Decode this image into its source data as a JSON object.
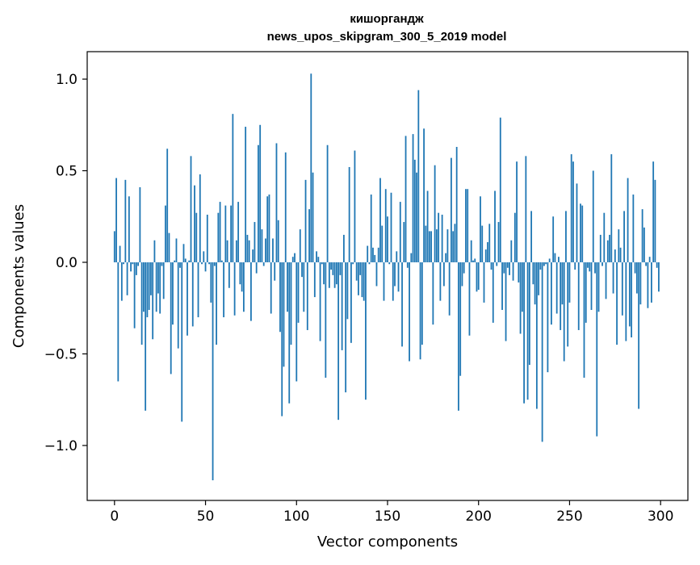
{
  "chart_data": {
    "type": "bar",
    "title": "кишоргандж",
    "subtitle": "news_upos_skipgram_300_5_2019 model",
    "xlabel": "Vector components",
    "ylabel": "Components values",
    "xlim": [
      -15,
      315
    ],
    "ylim": [
      -1.3,
      1.15
    ],
    "xticks": [
      0,
      50,
      100,
      150,
      200,
      250,
      300
    ],
    "yticks": [
      -1.0,
      -0.5,
      0.0,
      0.5,
      1.0
    ],
    "ytick_labels": [
      "−1.0",
      "−0.5",
      "0.0",
      "0.5",
      "1.0"
    ],
    "grid": false,
    "bar_color": "#1f77b4",
    "values": [
      0.17,
      0.46,
      -0.65,
      0.09,
      -0.21,
      -0.01,
      0.45,
      -0.18,
      0.36,
      -0.05,
      -0.01,
      -0.36,
      -0.07,
      -0.02,
      0.41,
      -0.45,
      -0.27,
      -0.81,
      -0.3,
      -0.26,
      -0.18,
      -0.42,
      0.12,
      -0.27,
      -0.17,
      -0.28,
      -0.02,
      -0.2,
      0.31,
      0.62,
      0.16,
      -0.61,
      -0.34,
      0.01,
      0.13,
      -0.47,
      -0.03,
      -0.87,
      0.1,
      0.02,
      -0.4,
      0.01,
      0.58,
      -0.35,
      0.42,
      0.27,
      -0.3,
      0.48,
      -0.01,
      0.06,
      -0.05,
      0.26,
      -0.01,
      -0.22,
      -1.19,
      -0.02,
      -0.45,
      0.27,
      0.33,
      0.01,
      -0.3,
      0.31,
      0.12,
      -0.14,
      0.31,
      0.81,
      -0.29,
      0.12,
      0.33,
      -0.12,
      -0.16,
      -0.27,
      0.74,
      0.15,
      0.12,
      -0.32,
      0.07,
      0.22,
      -0.06,
      0.64,
      0.75,
      0.18,
      -0.02,
      0.13,
      0.36,
      0.37,
      -0.28,
      0.13,
      -0.1,
      0.65,
      0.23,
      -0.38,
      -0.84,
      -0.57,
      0.6,
      -0.27,
      -0.77,
      -0.45,
      0.03,
      0.05,
      -0.65,
      -0.33,
      0.18,
      -0.08,
      -0.27,
      0.45,
      -0.37,
      0.29,
      1.03,
      0.49,
      -0.19,
      0.06,
      0.03,
      -0.43,
      -0.01,
      -0.12,
      -0.63,
      0.64,
      -0.14,
      -0.04,
      -0.07,
      -0.14,
      -0.12,
      -0.86,
      -0.07,
      -0.48,
      0.15,
      -0.71,
      -0.31,
      0.52,
      -0.44,
      -0.01,
      0.61,
      -0.1,
      -0.18,
      -0.07,
      -0.19,
      -0.21,
      -0.75,
      0.09,
      -0.01,
      0.37,
      0.08,
      0.04,
      -0.13,
      0.08,
      0.46,
      0.2,
      -0.21,
      0.4,
      0.25,
      -0.01,
      0.38,
      -0.21,
      -0.13,
      0.06,
      -0.16,
      0.33,
      -0.46,
      0.22,
      0.69,
      -0.03,
      -0.54,
      0.05,
      0.7,
      0.56,
      0.49,
      0.94,
      -0.53,
      -0.45,
      0.73,
      0.2,
      0.39,
      0.17,
      0.17,
      -0.34,
      0.53,
      0.18,
      0.27,
      -0.21,
      0.26,
      -0.13,
      0.05,
      0.18,
      -0.29,
      0.57,
      0.17,
      0.21,
      0.63,
      -0.81,
      -0.62,
      -0.13,
      -0.06,
      0.4,
      0.4,
      -0.4,
      0.12,
      0.01,
      0.02,
      -0.16,
      -0.15,
      0.36,
      0.2,
      -0.22,
      0.07,
      0.11,
      0.21,
      -0.04,
      -0.33,
      0.39,
      -0.02,
      0.22,
      0.79,
      -0.26,
      -0.06,
      -0.43,
      -0.03,
      -0.07,
      0.12,
      -0.1,
      0.27,
      0.55,
      -0.11,
      -0.39,
      -0.27,
      -0.77,
      0.58,
      -0.75,
      -0.56,
      0.28,
      -0.12,
      -0.23,
      -0.8,
      -0.18,
      -0.04,
      -0.98,
      -0.02,
      -0.01,
      -0.6,
      0.02,
      -0.34,
      0.25,
      0.05,
      -0.28,
      0.03,
      -0.37,
      -0.23,
      -0.54,
      0.28,
      -0.46,
      -0.22,
      0.59,
      0.55,
      -0.04,
      0.43,
      -0.37,
      0.32,
      0.31,
      -0.63,
      -0.33,
      -0.03,
      -0.05,
      -0.26,
      0.5,
      -0.06,
      -0.95,
      -0.27,
      0.15,
      -0.02,
      0.27,
      -0.2,
      0.12,
      0.15,
      0.59,
      -0.17,
      0.07,
      -0.45,
      0.18,
      0.08,
      -0.29,
      0.28,
      -0.43,
      0.46,
      -0.35,
      -0.41,
      0.37,
      -0.06,
      -0.17,
      -0.8,
      -0.23,
      0.29,
      0.19,
      -0.02,
      -0.25,
      0.03,
      -0.22,
      0.55,
      0.45,
      -0.03,
      -0.16
    ]
  }
}
